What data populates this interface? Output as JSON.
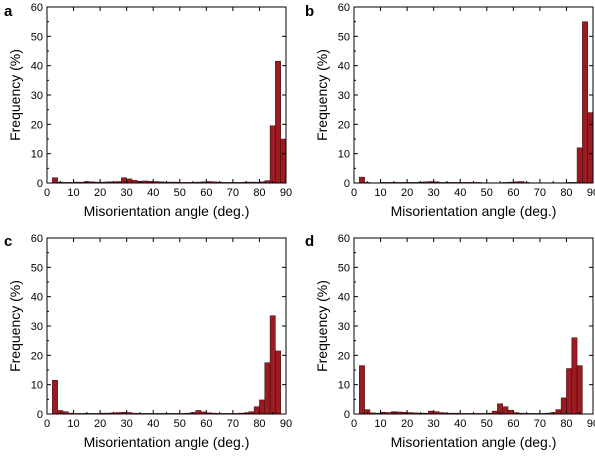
{
  "chart_data": [
    {
      "panel": "a",
      "type": "bar",
      "xlabel": "Misorientation angle (deg.)",
      "ylabel": "Frequency (%)",
      "xlim": [
        0,
        90
      ],
      "ylim": [
        0,
        60
      ],
      "xticks": [
        0,
        10,
        20,
        30,
        40,
        50,
        60,
        70,
        80,
        90
      ],
      "yticks": [
        0,
        10,
        20,
        30,
        40,
        50,
        60
      ],
      "bin_width": 2,
      "x": [
        3,
        5,
        7,
        9,
        11,
        13,
        15,
        17,
        19,
        21,
        23,
        25,
        27,
        29,
        31,
        33,
        35,
        37,
        39,
        41,
        43,
        45,
        47,
        49,
        51,
        53,
        55,
        57,
        59,
        61,
        63,
        65,
        67,
        69,
        71,
        73,
        75,
        77,
        79,
        81,
        83,
        85,
        87,
        89
      ],
      "values": [
        1.8,
        0.3,
        0.2,
        0.2,
        0.3,
        0.3,
        0.5,
        0.4,
        0.3,
        0.3,
        0.4,
        0.4,
        0.5,
        1.8,
        1.4,
        0.9,
        0.6,
        0.7,
        0.6,
        0.5,
        0.4,
        0.3,
        0.3,
        0.3,
        0.2,
        0.2,
        0.2,
        0.3,
        0.4,
        0.5,
        0.4,
        0.3,
        0.2,
        0.2,
        0.2,
        0.2,
        0.3,
        0.3,
        0.3,
        0.4,
        0.8,
        19.5,
        41.5,
        15.0
      ],
      "color": "#9b1b22"
    },
    {
      "panel": "b",
      "type": "bar",
      "xlabel": "Misorientation angle (deg.)",
      "ylabel": "Frequency (%)",
      "xlim": [
        0,
        90
      ],
      "ylim": [
        0,
        60
      ],
      "xticks": [
        0,
        10,
        20,
        30,
        40,
        50,
        60,
        70,
        80,
        90
      ],
      "yticks": [
        0,
        10,
        20,
        30,
        40,
        50,
        60
      ],
      "bin_width": 2,
      "x": [
        3,
        5,
        7,
        9,
        11,
        13,
        15,
        17,
        19,
        21,
        23,
        25,
        27,
        29,
        31,
        33,
        35,
        37,
        39,
        41,
        43,
        45,
        47,
        49,
        51,
        53,
        55,
        57,
        59,
        61,
        63,
        65,
        67,
        69,
        71,
        73,
        75,
        77,
        79,
        81,
        83,
        85,
        87,
        89
      ],
      "values": [
        2.0,
        0.2,
        0.1,
        0.1,
        0.2,
        0.2,
        0.2,
        0.2,
        0.2,
        0.2,
        0.2,
        0.3,
        0.4,
        0.5,
        0.4,
        0.2,
        0.2,
        0.2,
        0.2,
        0.2,
        0.2,
        0.2,
        0.2,
        0.1,
        0.1,
        0.1,
        0.1,
        0.2,
        0.3,
        0.4,
        0.5,
        0.2,
        0.1,
        0.1,
        0.1,
        0.1,
        0.1,
        0.1,
        0.1,
        0.2,
        0.2,
        12.0,
        55.0,
        24.0
      ],
      "color": "#9b1b22"
    },
    {
      "panel": "c",
      "type": "bar",
      "xlabel": "Misorientation angle (deg.)",
      "ylabel": "Frequency (%)",
      "xlim": [
        0,
        90
      ],
      "ylim": [
        0,
        60
      ],
      "xticks": [
        0,
        10,
        20,
        30,
        40,
        50,
        60,
        70,
        80,
        90
      ],
      "yticks": [
        0,
        10,
        20,
        30,
        40,
        50,
        60
      ],
      "bin_width": 2,
      "x": [
        3,
        5,
        7,
        9,
        11,
        13,
        15,
        17,
        19,
        21,
        23,
        25,
        27,
        29,
        31,
        33,
        35,
        37,
        39,
        41,
        43,
        45,
        47,
        49,
        51,
        53,
        55,
        57,
        59,
        61,
        63,
        65,
        67,
        69,
        71,
        73,
        75,
        77,
        79,
        81,
        83,
        85,
        87,
        89
      ],
      "values": [
        11.5,
        1.2,
        0.8,
        0.3,
        0.2,
        0.2,
        0.2,
        0.2,
        0.2,
        0.3,
        0.3,
        0.4,
        0.5,
        0.6,
        0.5,
        0.3,
        0.2,
        0.2,
        0.2,
        0.2,
        0.2,
        0.2,
        0.2,
        0.2,
        0.2,
        0.3,
        0.5,
        1.2,
        0.7,
        0.4,
        0.3,
        0.2,
        0.2,
        0.2,
        0.2,
        0.3,
        0.4,
        0.8,
        2.5,
        4.8,
        17.5,
        33.5,
        21.5,
        0.0
      ],
      "color": "#9b1b22"
    },
    {
      "panel": "d",
      "type": "bar",
      "xlabel": "Misorientation angle (deg.)",
      "ylabel": "Frequency (%)",
      "xlim": [
        0,
        90
      ],
      "ylim": [
        0,
        60
      ],
      "xticks": [
        0,
        10,
        20,
        30,
        40,
        50,
        60,
        70,
        80,
        90
      ],
      "yticks": [
        0,
        10,
        20,
        30,
        40,
        50,
        60
      ],
      "bin_width": 2,
      "x": [
        3,
        5,
        7,
        9,
        11,
        13,
        15,
        17,
        19,
        21,
        23,
        25,
        27,
        29,
        31,
        33,
        35,
        37,
        39,
        41,
        43,
        45,
        47,
        49,
        51,
        53,
        55,
        57,
        59,
        61,
        63,
        65,
        67,
        69,
        71,
        73,
        75,
        77,
        79,
        81,
        83,
        85,
        87,
        89
      ],
      "values": [
        16.5,
        1.5,
        0.4,
        0.3,
        0.6,
        0.5,
        0.8,
        0.7,
        0.6,
        0.5,
        0.4,
        0.3,
        0.3,
        1.0,
        0.8,
        0.5,
        0.3,
        0.3,
        0.3,
        0.2,
        0.2,
        0.2,
        0.2,
        0.2,
        0.3,
        1.0,
        3.5,
        2.5,
        1.3,
        0.5,
        0.3,
        0.2,
        0.2,
        0.2,
        0.2,
        0.3,
        0.5,
        1.5,
        5.5,
        15.5,
        26.0,
        16.5,
        0.0,
        0.0
      ],
      "color": "#9b1b22"
    }
  ],
  "panel_labels": [
    "a",
    "b",
    "c",
    "d"
  ]
}
